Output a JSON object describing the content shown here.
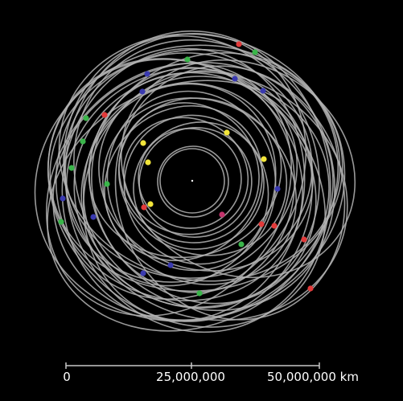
{
  "background_color": "#000000",
  "orbit_color": "#b4b4b4",
  "scale_bar": {
    "color": "#c8c8c8",
    "text_color": "#ffffff",
    "ticks": [
      {
        "value": 0,
        "label": "0"
      },
      {
        "value": 25000000,
        "label": "25,000,000"
      },
      {
        "value": 50000000,
        "label": "50,000,000 km"
      }
    ]
  },
  "body_colors": {
    "red": "#e23a3a",
    "green": "#3ab54a",
    "blue": "#3a3ab0",
    "yellow": "#f2e53a",
    "magenta": "#c2336b"
  }
}
